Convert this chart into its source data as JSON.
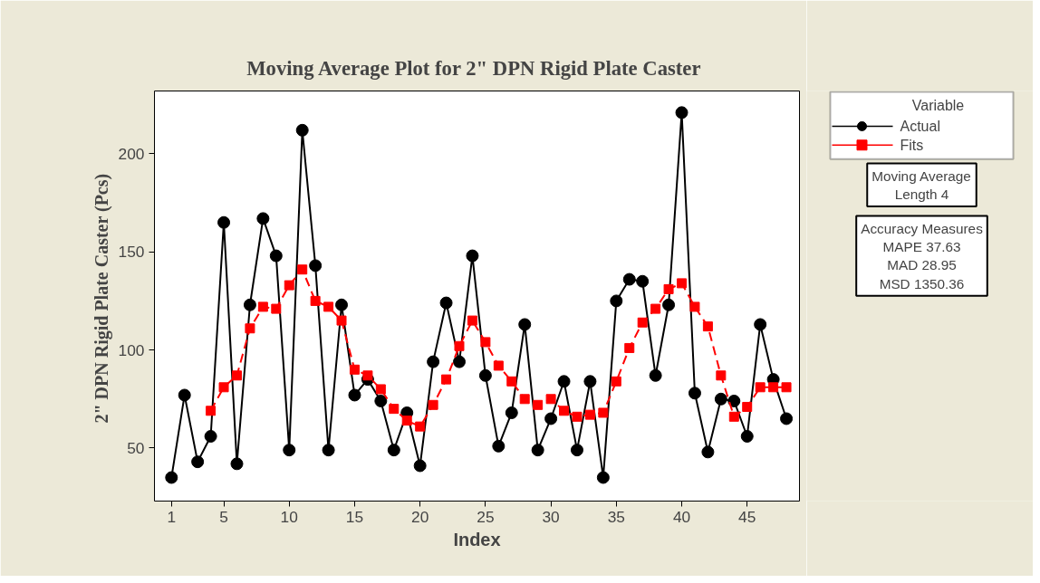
{
  "chart_data": {
    "type": "line",
    "title": "Moving Average Plot for 2\" DPN  Rigid Plate Caster",
    "xlabel": "Index",
    "ylabel": "2\" DPN  Rigid Plate Caster (Pcs)",
    "legend_title": "Variable",
    "x": [
      1,
      2,
      3,
      4,
      5,
      6,
      7,
      8,
      9,
      10,
      11,
      12,
      13,
      14,
      15,
      16,
      17,
      18,
      19,
      20,
      21,
      22,
      23,
      24,
      25,
      26,
      27,
      28,
      29,
      30,
      31,
      32,
      33,
      34,
      35,
      36,
      37,
      38,
      39,
      40,
      41,
      42,
      43,
      44,
      45,
      46,
      47,
      48
    ],
    "series": [
      {
        "name": "Actual",
        "color": "#000000",
        "marker": "circle",
        "line_style": "solid",
        "values": [
          35,
          77,
          43,
          56,
          165,
          42,
          123,
          167,
          148,
          49,
          212,
          143,
          49,
          123,
          77,
          85,
          74,
          49,
          68,
          41,
          94,
          124,
          94,
          148,
          87,
          51,
          68,
          113,
          49,
          65,
          84,
          49,
          84,
          35,
          125,
          136,
          135,
          87,
          123,
          221,
          78,
          48,
          75,
          74,
          56,
          113,
          85,
          65
        ]
      },
      {
        "name": "Fits",
        "color": "#ff0000",
        "marker": "square",
        "line_style": "dashed",
        "values": [
          null,
          null,
          null,
          69,
          81,
          87,
          111,
          122,
          121,
          133,
          141,
          125,
          122,
          115,
          90,
          87,
          80,
          70,
          64,
          61,
          72,
          85,
          102,
          115,
          104,
          92,
          84,
          75,
          72,
          75,
          69,
          66,
          67,
          68,
          84,
          101,
          114,
          121,
          131,
          134,
          122,
          112,
          87,
          66,
          71,
          81,
          81,
          81
        ]
      }
    ],
    "xlim": [
      -0.3,
      49
    ],
    "ylim": [
      23,
      232
    ],
    "xticks": [
      1,
      5,
      10,
      15,
      20,
      25,
      30,
      35,
      40,
      45
    ],
    "yticks": [
      50,
      100,
      150,
      200
    ],
    "grid": false,
    "legend": "right",
    "annotations": [
      "Moving Average\nLength 4",
      "Accuracy Measures\nMAPE 37.63\nMAD 28.95\nMSD 1350.36"
    ]
  }
}
